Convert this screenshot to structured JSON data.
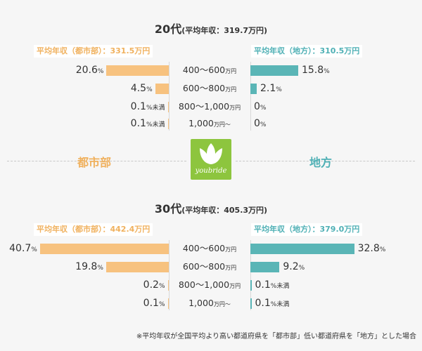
{
  "chart_data": [
    {
      "type": "bar",
      "title": "20代",
      "subtitle": "(平均年収：319.7万円)",
      "categories": [
        "400〜600",
        "600〜800",
        "800〜1,000",
        "1,000"
      ],
      "category_units": [
        "万円",
        "万円",
        "万円",
        "万円〜"
      ],
      "series": [
        {
          "name": "平均年収（都市部）：331.5万円",
          "values": [
            20.6,
            4.5,
            0.1,
            0.1
          ],
          "value_labels": [
            "20.6",
            "4.5",
            "0.1",
            "0.1"
          ],
          "value_suffixes": [
            "%",
            "%",
            "%未満",
            "%未満"
          ]
        },
        {
          "name": "平均年収（地方）：310.5万円",
          "values": [
            15.8,
            2.1,
            0,
            0
          ],
          "value_labels": [
            "15.8",
            "2.1",
            "0",
            "0"
          ],
          "value_suffixes": [
            "%",
            "%",
            "%",
            "%"
          ]
        }
      ]
    },
    {
      "type": "bar",
      "title": "30代",
      "subtitle": "(平均年収：405.3万円)",
      "categories": [
        "400〜600",
        "600〜800",
        "800〜1,000",
        "1,000"
      ],
      "category_units": [
        "万円",
        "万円",
        "万円",
        "万円〜"
      ],
      "series": [
        {
          "name": "平均年収（都市部）：442.4万円",
          "values": [
            40.7,
            19.8,
            0.2,
            0.1
          ],
          "value_labels": [
            "40.7",
            "19.8",
            "0.2",
            "0.1"
          ],
          "value_suffixes": [
            "%",
            "%",
            "%",
            "%"
          ]
        },
        {
          "name": "平均年収（地方）：379.0万円",
          "values": [
            32.8,
            9.2,
            0.1,
            0.1
          ],
          "value_labels": [
            "32.8",
            "9.2",
            "0.1",
            "0.1"
          ],
          "value_suffixes": [
            "%",
            "%",
            "%未満",
            "%未満"
          ]
        }
      ]
    }
  ],
  "labels": {
    "urban": "都市部",
    "rural": "地方",
    "logo": "youbride",
    "footnote": "※平均年収が全国平均より高い都道府県を「都市部」低い都道府県を「地方」とした場合"
  },
  "colors": {
    "urban_bar": "#f7c27f",
    "rural_bar": "#5ab5b6",
    "urban_text": "#f0b15e",
    "rural_text": "#4fb0b5",
    "logo_bg": "#8dc53e"
  },
  "icons": {
    "logo": "lotus-leaf-icon"
  }
}
